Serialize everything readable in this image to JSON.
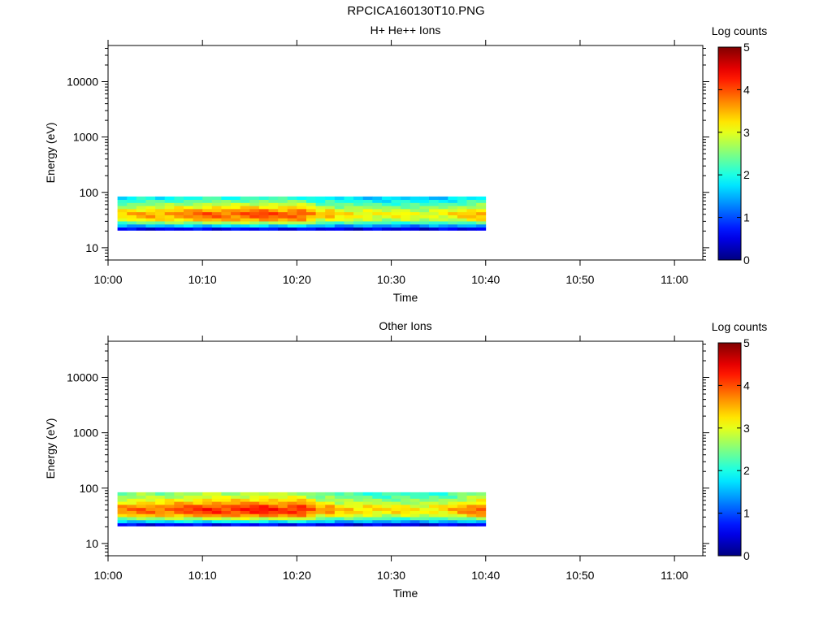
{
  "page": {
    "title": "RPCICA160130T10.PNG"
  },
  "chart_data": [
    {
      "type": "heatmap",
      "title": "H+ He++ Ions",
      "xlabel": "Time",
      "ylabel": "Energy (eV)",
      "x_ticks": [
        "10:00",
        "10:10",
        "10:20",
        "10:30",
        "10:40",
        "10:50",
        "11:00"
      ],
      "x_range": [
        "10:00",
        "11:03"
      ],
      "y_scale": "log",
      "y_ticks": [
        10,
        100,
        1000,
        10000
      ],
      "y_tick_labels": [
        "10",
        "100",
        "1000",
        "10000"
      ],
      "y_range": [
        6,
        45000
      ],
      "colorbar": {
        "label": "Log counts",
        "range": [
          0,
          5
        ],
        "ticks": [
          "0",
          "1",
          "2",
          "3",
          "4",
          "5"
        ]
      },
      "data_time_range": [
        "10:01",
        "10:40"
      ],
      "energy_bins_eV": [
        22,
        25,
        28,
        32,
        36,
        41,
        47,
        54,
        62,
        71,
        82
      ],
      "time_bins": [
        "10:01",
        "10:02",
        "10:03",
        "10:04",
        "10:05",
        "10:06",
        "10:07",
        "10:08",
        "10:09",
        "10:10",
        "10:11",
        "10:12",
        "10:13",
        "10:14",
        "10:15",
        "10:16",
        "10:17",
        "10:18",
        "10:19",
        "10:20",
        "10:21",
        "10:22",
        "10:23",
        "10:24",
        "10:25",
        "10:26",
        "10:27",
        "10:28",
        "10:29",
        "10:30",
        "10:31",
        "10:32",
        "10:33",
        "10:34",
        "10:35",
        "10:36",
        "10:37",
        "10:38",
        "10:39"
      ],
      "profile_log_counts": [
        0.6,
        1.7,
        2.7,
        3.5,
        3.8,
        3.9,
        3.6,
        3.2,
        2.8,
        2.4,
        2.1
      ],
      "time_intensity": [
        0.85,
        0.88,
        0.9,
        0.92,
        0.9,
        0.93,
        0.95,
        0.96,
        0.98,
        1.0,
        1.0,
        0.99,
        1.0,
        1.02,
        1.03,
        1.04,
        1.02,
        1.0,
        1.02,
        1.03,
        0.95,
        0.85,
        0.9,
        0.82,
        0.84,
        0.8,
        0.82,
        0.8,
        0.78,
        0.8,
        0.8,
        0.78,
        0.76,
        0.8,
        0.8,
        0.82,
        0.85,
        0.88,
        0.9
      ]
    },
    {
      "type": "heatmap",
      "title": "Other Ions",
      "xlabel": "Time",
      "ylabel": "Energy (eV)",
      "x_ticks": [
        "10:00",
        "10:10",
        "10:20",
        "10:30",
        "10:40",
        "10:50",
        "11:00"
      ],
      "x_range": [
        "10:00",
        "11:03"
      ],
      "y_scale": "log",
      "y_ticks": [
        10,
        100,
        1000,
        10000
      ],
      "y_tick_labels": [
        "10",
        "100",
        "1000",
        "10000"
      ],
      "y_range": [
        6,
        45000
      ],
      "colorbar": {
        "label": "Log counts",
        "range": [
          0,
          5
        ],
        "ticks": [
          "0",
          "1",
          "2",
          "3",
          "4",
          "5"
        ]
      },
      "data_time_range": [
        "10:01",
        "10:40"
      ],
      "energy_bins_eV": [
        22,
        25,
        28,
        32,
        36,
        41,
        47,
        54,
        62,
        71,
        82
      ],
      "time_bins": [
        "10:01",
        "10:02",
        "10:03",
        "10:04",
        "10:05",
        "10:06",
        "10:07",
        "10:08",
        "10:09",
        "10:10",
        "10:11",
        "10:12",
        "10:13",
        "10:14",
        "10:15",
        "10:16",
        "10:17",
        "10:18",
        "10:19",
        "10:20",
        "10:21",
        "10:22",
        "10:23",
        "10:24",
        "10:25",
        "10:26",
        "10:27",
        "10:28",
        "10:29",
        "10:30",
        "10:31",
        "10:32",
        "10:33",
        "10:34",
        "10:35",
        "10:36",
        "10:37",
        "10:38",
        "10:39"
      ],
      "profile_log_counts": [
        0.6,
        1.8,
        2.8,
        3.6,
        4.0,
        4.1,
        3.9,
        3.5,
        3.2,
        2.9,
        2.7
      ],
      "time_intensity": [
        0.9,
        0.92,
        0.95,
        0.94,
        0.93,
        0.95,
        0.98,
        0.99,
        1.0,
        1.02,
        1.02,
        1.0,
        1.02,
        1.03,
        1.04,
        1.05,
        1.03,
        1.0,
        1.03,
        1.04,
        0.96,
        0.86,
        0.9,
        0.82,
        0.84,
        0.8,
        0.82,
        0.8,
        0.78,
        0.8,
        0.8,
        0.78,
        0.76,
        0.8,
        0.8,
        0.84,
        0.88,
        0.92,
        0.95
      ]
    }
  ]
}
